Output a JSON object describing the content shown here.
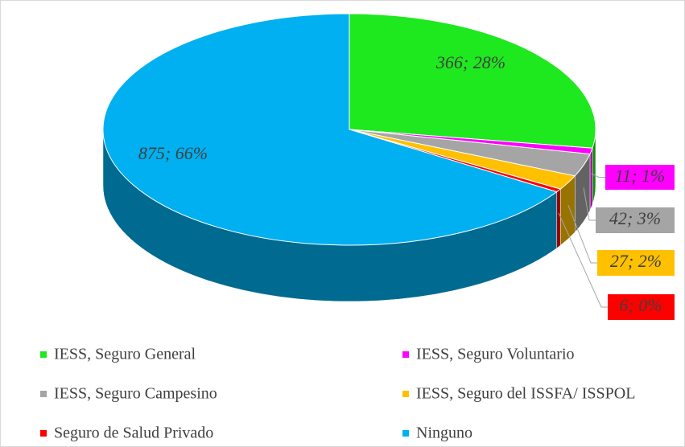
{
  "chart_data": {
    "type": "pie",
    "categories": [
      "IESS, Seguro General",
      "IESS, Seguro Voluntario",
      "IESS, Seguro Campesino",
      "IESS, Seguro del ISSFA/ ISSPOL",
      "Seguro de Salud Privado",
      "Ninguno"
    ],
    "values": [
      366,
      11,
      42,
      27,
      6,
      875
    ],
    "value_labels": [
      "366; 28%",
      "11; 1%",
      "42; 3%",
      "27; 2%",
      "6; 0%",
      "875; 66%"
    ],
    "colors": [
      "#1ee81e",
      "#ff00ff",
      "#a5a5a5",
      "#ffc000",
      "#ff0000",
      "#00b0f0"
    ],
    "legend": "bottom"
  }
}
